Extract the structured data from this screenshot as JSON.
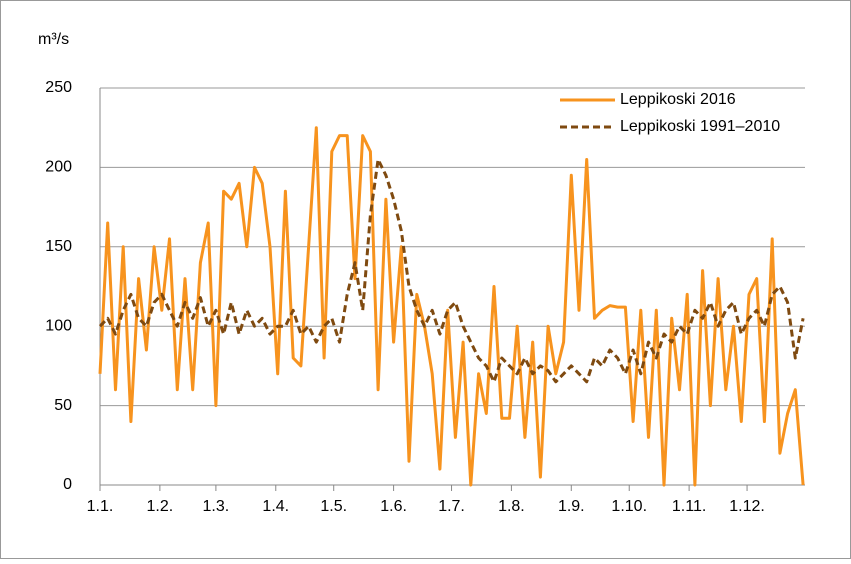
{
  "chart_data": {
    "type": "line",
    "ylabel": "m³/s",
    "x": [
      1,
      5,
      9,
      13,
      17,
      21,
      25,
      29,
      33,
      37,
      41,
      45,
      49,
      53,
      57,
      61,
      65,
      69,
      73,
      77,
      81,
      85,
      89,
      93,
      97,
      101,
      105,
      109,
      113,
      117,
      121,
      125,
      129,
      133,
      137,
      141,
      145,
      149,
      153,
      157,
      161,
      165,
      169,
      173,
      177,
      181,
      185,
      189,
      193,
      197,
      201,
      205,
      209,
      213,
      217,
      221,
      225,
      229,
      233,
      237,
      241,
      245,
      249,
      253,
      257,
      261,
      265,
      269,
      273,
      277,
      281,
      285,
      289,
      293,
      297,
      301,
      305,
      309,
      313,
      317,
      321,
      325,
      329,
      333,
      337,
      341,
      345,
      349,
      353,
      357,
      361,
      365
    ],
    "series": [
      {
        "name": "Leppikoski 2016",
        "color": "#f7931e",
        "dashed": false,
        "values": [
          70,
          165,
          60,
          150,
          40,
          130,
          85,
          150,
          110,
          155,
          60,
          130,
          60,
          140,
          165,
          50,
          185,
          180,
          190,
          150,
          200,
          190,
          150,
          70,
          185,
          80,
          75,
          150,
          225,
          80,
          210,
          220,
          220,
          130,
          220,
          210,
          60,
          180,
          90,
          150,
          15,
          120,
          100,
          70,
          10,
          110,
          30,
          90,
          0,
          70,
          45,
          125,
          42,
          42,
          100,
          30,
          90,
          5,
          100,
          70,
          90,
          195,
          110,
          205,
          105,
          110,
          113,
          112,
          112,
          40,
          110,
          30,
          110,
          0,
          105,
          60,
          120,
          0,
          135,
          50,
          130,
          60,
          100,
          40,
          120,
          130,
          40,
          155,
          20,
          45,
          60,
          0
        ]
      },
      {
        "name": "Leppikoski 1991–2010",
        "color": "#7f4a10",
        "dashed": true,
        "values": [
          100,
          105,
          95,
          110,
          120,
          105,
          100,
          115,
          120,
          110,
          100,
          115,
          105,
          118,
          100,
          110,
          95,
          115,
          95,
          110,
          100,
          105,
          95,
          100,
          100,
          110,
          95,
          100,
          90,
          100,
          105,
          90,
          120,
          140,
          110,
          170,
          205,
          195,
          180,
          160,
          125,
          110,
          100,
          110,
          95,
          110,
          115,
          100,
          90,
          80,
          75,
          65,
          80,
          75,
          70,
          80,
          70,
          75,
          72,
          65,
          70,
          75,
          70,
          65,
          80,
          75,
          85,
          80,
          70,
          85,
          70,
          90,
          80,
          95,
          90,
          100,
          95,
          110,
          105,
          115,
          100,
          110,
          115,
          95,
          105,
          110,
          100,
          120,
          125,
          115,
          80,
          105
        ]
      }
    ],
    "xlim": [
      1,
      366
    ],
    "xticks": [
      {
        "value": 1,
        "label": "1.1."
      },
      {
        "value": 32,
        "label": "1.2."
      },
      {
        "value": 61,
        "label": "1.3."
      },
      {
        "value": 92,
        "label": "1.4."
      },
      {
        "value": 122,
        "label": "1.5."
      },
      {
        "value": 153,
        "label": "1.6."
      },
      {
        "value": 183,
        "label": "1.7."
      },
      {
        "value": 214,
        "label": "1.8."
      },
      {
        "value": 245,
        "label": "1.9."
      },
      {
        "value": 275,
        "label": "1.10."
      },
      {
        "value": 306,
        "label": "1.11."
      },
      {
        "value": 336,
        "label": "1.12."
      }
    ],
    "ylim": [
      0,
      250
    ],
    "yticks": [
      0,
      50,
      100,
      150,
      200,
      250
    ],
    "grid": true,
    "legend": "top-right"
  }
}
